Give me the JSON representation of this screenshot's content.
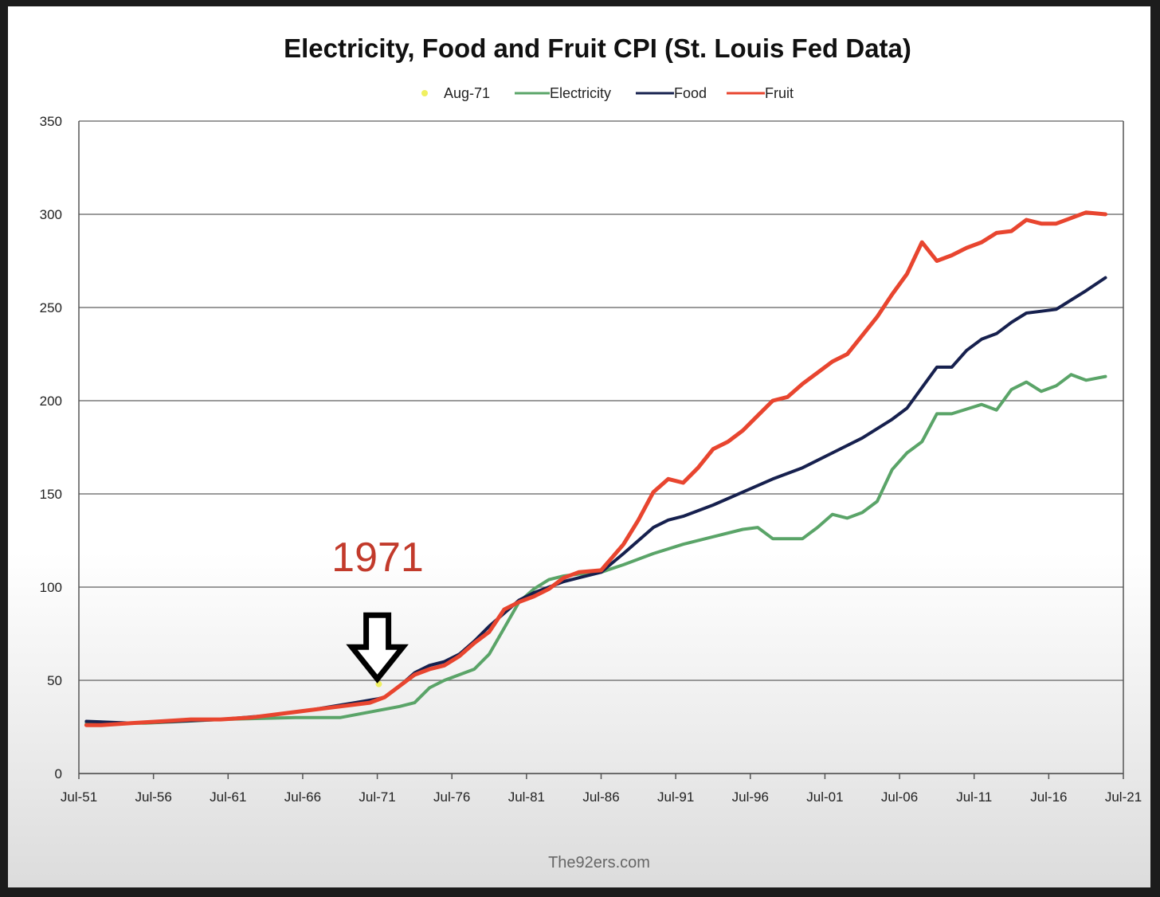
{
  "chart_data": {
    "type": "line",
    "title": "Electricity, Food and Fruit CPI (St. Louis Fed Data)",
    "xlabel": "",
    "ylabel": "",
    "ylim": [
      0,
      350
    ],
    "yticks": [
      0,
      50,
      100,
      150,
      200,
      250,
      300,
      350
    ],
    "xlim": [
      1951.5,
      2021.5
    ],
    "xticks": [
      {
        "label": "Jul-51",
        "value": 1951.5
      },
      {
        "label": "Jul-56",
        "value": 1956.5
      },
      {
        "label": "Jul-61",
        "value": 1961.5
      },
      {
        "label": "Jul-66",
        "value": 1966.5
      },
      {
        "label": "Jul-71",
        "value": 1971.5
      },
      {
        "label": "Jul-76",
        "value": 1976.5
      },
      {
        "label": "Jul-81",
        "value": 1981.5
      },
      {
        "label": "Jul-86",
        "value": 1986.5
      },
      {
        "label": "Jul-91",
        "value": 1991.5
      },
      {
        "label": "Jul-96",
        "value": 1996.5
      },
      {
        "label": "Jul-01",
        "value": 2001.5
      },
      {
        "label": "Jul-06",
        "value": 2006.5
      },
      {
        "label": "Jul-11",
        "value": 2011.5
      },
      {
        "label": "Jul-16",
        "value": 2016.5
      },
      {
        "label": "Jul-21",
        "value": 2021.5
      }
    ],
    "grid": true,
    "legend": [
      {
        "name": "Aug-71",
        "color": "#f0f060",
        "marker": "star"
      },
      {
        "name": "Electricity",
        "color": "#5aa468"
      },
      {
        "name": "Food",
        "color": "#16204e"
      },
      {
        "name": "Fruit",
        "color": "#e8452f"
      }
    ],
    "marker_point": {
      "name": "Aug-71",
      "x": 1971.6,
      "y": 48
    },
    "series": [
      {
        "name": "Electricity",
        "color": "#5aa468",
        "points": [
          [
            1952,
            27
          ],
          [
            1956,
            27
          ],
          [
            1961,
            29
          ],
          [
            1966,
            30
          ],
          [
            1969,
            30
          ],
          [
            1971,
            33
          ],
          [
            1973,
            36
          ],
          [
            1974,
            38
          ],
          [
            1975,
            46
          ],
          [
            1976,
            50
          ],
          [
            1977,
            53
          ],
          [
            1978,
            56
          ],
          [
            1979,
            64
          ],
          [
            1980,
            78
          ],
          [
            1981,
            92
          ],
          [
            1982,
            99
          ],
          [
            1983,
            104
          ],
          [
            1984,
            106
          ],
          [
            1985,
            107
          ],
          [
            1986.5,
            108
          ],
          [
            1988,
            112
          ],
          [
            1990,
            118
          ],
          [
            1992,
            123
          ],
          [
            1994,
            127
          ],
          [
            1996,
            131
          ],
          [
            1997,
            132
          ],
          [
            1998,
            126
          ],
          [
            2000,
            126
          ],
          [
            2001,
            132
          ],
          [
            2002,
            139
          ],
          [
            2003,
            137
          ],
          [
            2004,
            140
          ],
          [
            2005,
            146
          ],
          [
            2006,
            163
          ],
          [
            2007,
            172
          ],
          [
            2008,
            178
          ],
          [
            2009,
            193
          ],
          [
            2010,
            193
          ],
          [
            2012,
            198
          ],
          [
            2013,
            195
          ],
          [
            2014,
            206
          ],
          [
            2015,
            210
          ],
          [
            2016,
            205
          ],
          [
            2017,
            208
          ],
          [
            2018,
            214
          ],
          [
            2019,
            211
          ],
          [
            2020.3,
            213
          ]
        ]
      },
      {
        "name": "Food",
        "color": "#16204e",
        "points": [
          [
            1952,
            28
          ],
          [
            1955,
            27
          ],
          [
            1958,
            28
          ],
          [
            1961,
            29
          ],
          [
            1964,
            31
          ],
          [
            1967,
            34
          ],
          [
            1970,
            38
          ],
          [
            1971.5,
            40
          ],
          [
            1972,
            41
          ],
          [
            1973,
            47
          ],
          [
            1974,
            54
          ],
          [
            1975,
            58
          ],
          [
            1976,
            60
          ],
          [
            1977,
            64
          ],
          [
            1978,
            71
          ],
          [
            1979,
            79
          ],
          [
            1980,
            86
          ],
          [
            1981,
            93
          ],
          [
            1982,
            97
          ],
          [
            1983,
            100
          ],
          [
            1984,
            103
          ],
          [
            1985,
            105
          ],
          [
            1986.5,
            108
          ],
          [
            1988,
            118
          ],
          [
            1990,
            132
          ],
          [
            1991,
            136
          ],
          [
            1992,
            138
          ],
          [
            1994,
            144
          ],
          [
            1996,
            151
          ],
          [
            1998,
            158
          ],
          [
            2000,
            164
          ],
          [
            2002,
            172
          ],
          [
            2004,
            180
          ],
          [
            2006,
            190
          ],
          [
            2007,
            196
          ],
          [
            2008,
            207
          ],
          [
            2009,
            218
          ],
          [
            2010,
            218
          ],
          [
            2011,
            227
          ],
          [
            2012,
            233
          ],
          [
            2013,
            236
          ],
          [
            2014,
            242
          ],
          [
            2015,
            247
          ],
          [
            2016,
            248
          ],
          [
            2017,
            249
          ],
          [
            2018,
            254
          ],
          [
            2019,
            259
          ],
          [
            2020.3,
            266
          ]
        ]
      },
      {
        "name": "Fruit",
        "color": "#e8452f",
        "points": [
          [
            1952,
            26
          ],
          [
            1953,
            26
          ],
          [
            1955,
            27
          ],
          [
            1957,
            28
          ],
          [
            1959,
            29
          ],
          [
            1961,
            29
          ],
          [
            1963,
            30
          ],
          [
            1965,
            32
          ],
          [
            1967,
            34
          ],
          [
            1969,
            36
          ],
          [
            1971,
            38
          ],
          [
            1972,
            41
          ],
          [
            1973,
            47
          ],
          [
            1974,
            53
          ],
          [
            1975,
            56
          ],
          [
            1976,
            58
          ],
          [
            1977,
            63
          ],
          [
            1978,
            70
          ],
          [
            1979,
            76
          ],
          [
            1980,
            88
          ],
          [
            1981,
            92
          ],
          [
            1982,
            95
          ],
          [
            1983,
            99
          ],
          [
            1984,
            105
          ],
          [
            1985,
            108
          ],
          [
            1986.5,
            109
          ],
          [
            1988,
            123
          ],
          [
            1989,
            136
          ],
          [
            1990,
            151
          ],
          [
            1991,
            158
          ],
          [
            1992,
            156
          ],
          [
            1993,
            164
          ],
          [
            1994,
            174
          ],
          [
            1995,
            178
          ],
          [
            1996,
            184
          ],
          [
            1997,
            192
          ],
          [
            1998,
            200
          ],
          [
            1999,
            202
          ],
          [
            2000,
            209
          ],
          [
            2001,
            215
          ],
          [
            2002,
            221
          ],
          [
            2003,
            225
          ],
          [
            2004,
            235
          ],
          [
            2005,
            245
          ],
          [
            2006,
            257
          ],
          [
            2007,
            268
          ],
          [
            2008,
            285
          ],
          [
            2009,
            275
          ],
          [
            2010,
            278
          ],
          [
            2011,
            282
          ],
          [
            2012,
            285
          ],
          [
            2013,
            290
          ],
          [
            2014,
            291
          ],
          [
            2015,
            297
          ],
          [
            2016,
            295
          ],
          [
            2017,
            295
          ],
          [
            2018,
            298
          ],
          [
            2019,
            301
          ],
          [
            2020.3,
            300
          ]
        ]
      }
    ]
  },
  "annotations": {
    "year_label": "1971",
    "arrow_target": {
      "x": 1971.5,
      "y": 49
    }
  },
  "credit": "The92ers.com"
}
